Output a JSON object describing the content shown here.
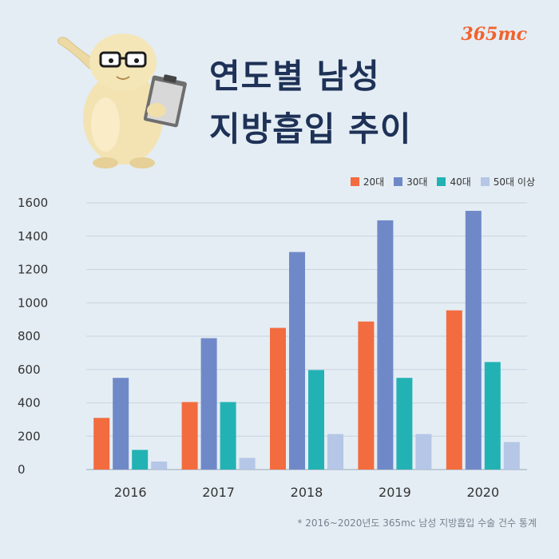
{
  "brand": {
    "logo_text": "365mc"
  },
  "header": {
    "title_line1": "연도별 남성",
    "title_line2": "지방흡입 추이"
  },
  "footnote": "* 2016~2020년도 365mc 남성 지방흡입 수술 건수 통계",
  "colors": {
    "20s": "#f26c3f",
    "30s": "#6f89c8",
    "40s": "#22b2b4",
    "50s": "#b5c6e6",
    "grid": "#c9d4df",
    "text": "#333333"
  },
  "chart_data": {
    "type": "bar",
    "title": "연도별 남성 지방흡입 추이",
    "categories": [
      "2016",
      "2017",
      "2018",
      "2019",
      "2020"
    ],
    "series": [
      {
        "name": "20대",
        "values": [
          310,
          405,
          850,
          888,
          955
        ]
      },
      {
        "name": "30대",
        "values": [
          550,
          788,
          1305,
          1495,
          1552
        ]
      },
      {
        "name": "40대",
        "values": [
          118,
          405,
          597,
          550,
          645
        ]
      },
      {
        "name": "50대 이상",
        "values": [
          48,
          70,
          213,
          213,
          165
        ]
      }
    ],
    "ylim": [
      0,
      1600
    ],
    "yticks": [
      0,
      200,
      400,
      600,
      800,
      1000,
      1200,
      1400,
      1600
    ],
    "grid": true,
    "legend_position": "top-right"
  }
}
